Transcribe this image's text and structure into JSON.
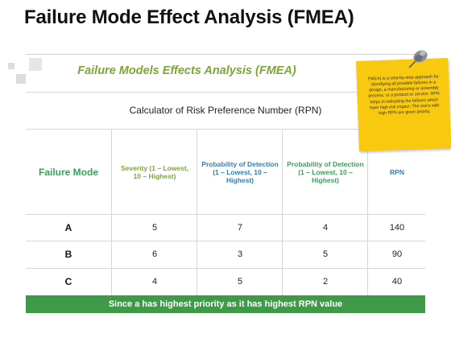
{
  "page_title": "Failure Mode Effect Analysis (FMEA)",
  "subtitle": "Failure Models Effects Analysis (FMEA)",
  "calculator_title": "Calculator of Risk Preference Number  (RPN)",
  "table": {
    "headers": {
      "mode": "Failure Mode",
      "severity": "Severity (1 – Lowest, 10 – Highest)",
      "prob_detection_1": "Probability of Detection (1 – Lowest, 10 – Highest)",
      "prob_detection_2": "Probability of Detection (1 – Lowest, 10 – Highest)",
      "rpn": "RPN"
    },
    "rows": [
      {
        "mode": "A",
        "severity": "5",
        "prob_detection_1": "7",
        "prob_detection_2": "4",
        "rpn": "140"
      },
      {
        "mode": "B",
        "severity": "6",
        "prob_detection_1": "3",
        "prob_detection_2": "5",
        "rpn": "90"
      },
      {
        "mode": "C",
        "severity": "4",
        "prob_detection_1": "5",
        "prob_detection_2": "2",
        "rpn": "40"
      }
    ]
  },
  "footer_note": "Since a has  highest priority  as it has highest RPN value",
  "sticky_note": "FMEA) is a step-by-step approach for identifying all possible failures in a design, a manufacturing or assembly process, or a product or service. RPN helps in indicating the failures which have high risk impact. The one's with high RPN are given priority.",
  "colors": {
    "title_green": "#7aa833",
    "header_blue": "#2e7fb8",
    "header_green": "#3aa05a",
    "footer_bar": "#3f9a47",
    "sticky_note": "#f8c90f"
  },
  "icons": [
    "pushpin-icon"
  ]
}
